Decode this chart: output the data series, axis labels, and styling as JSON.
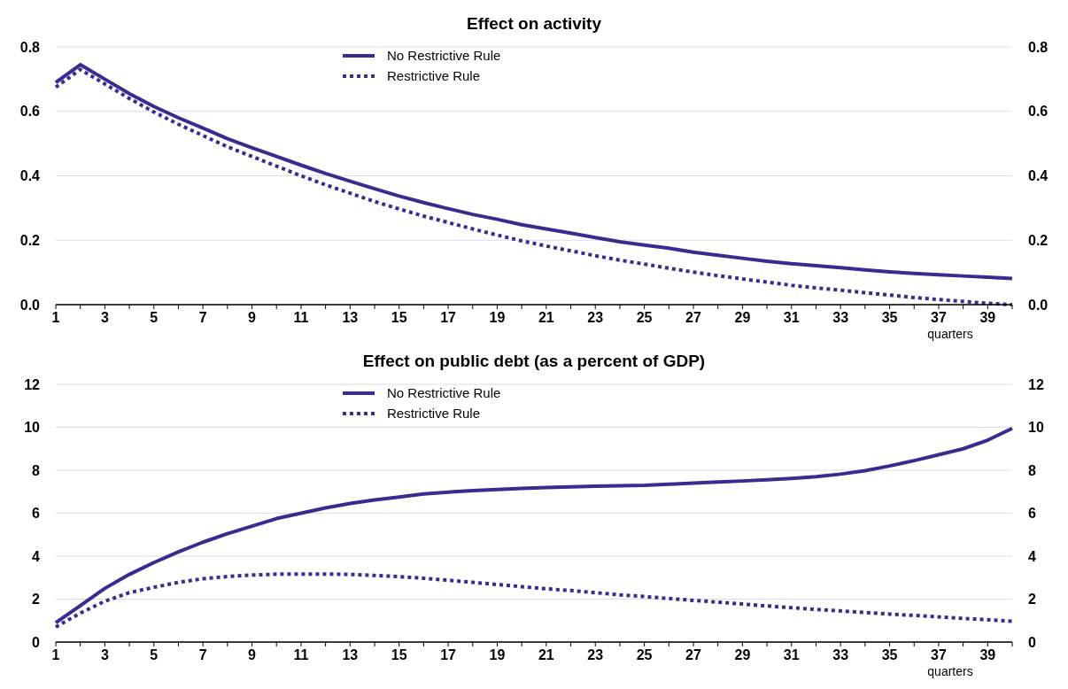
{
  "chart_data": [
    {
      "type": "line",
      "title": "Effect on activity",
      "xlabel": "quarters",
      "x": [
        1,
        2,
        3,
        4,
        5,
        6,
        7,
        8,
        9,
        10,
        11,
        12,
        13,
        14,
        15,
        16,
        17,
        18,
        19,
        20,
        21,
        22,
        23,
        24,
        25,
        26,
        27,
        28,
        29,
        30,
        31,
        32,
        33,
        34,
        35,
        36,
        37,
        38,
        39,
        40
      ],
      "xlim": [
        1,
        40
      ],
      "xticks": [
        1,
        {
          "value": 2,
          "label": null
        },
        3,
        {
          "value": 4,
          "label": null
        },
        5,
        {
          "value": 6,
          "label": null
        },
        7,
        {
          "value": 8,
          "label": null
        },
        9,
        {
          "value": 10,
          "label": null
        },
        11,
        {
          "value": 12,
          "label": null
        },
        13,
        {
          "value": 14,
          "label": null
        },
        15,
        {
          "value": 16,
          "label": null
        },
        17,
        {
          "value": 18,
          "label": null
        },
        19,
        {
          "value": 20,
          "label": null
        },
        21,
        {
          "value": 22,
          "label": null
        },
        23,
        {
          "value": 24,
          "label": null
        },
        25,
        {
          "value": 26,
          "label": null
        },
        27,
        {
          "value": 28,
          "label": null
        },
        29,
        {
          "value": 30,
          "label": null
        },
        31,
        {
          "value": 32,
          "label": null
        },
        33,
        {
          "value": 34,
          "label": null
        },
        35,
        {
          "value": 36,
          "label": null
        },
        37,
        {
          "value": 38,
          "label": null
        },
        39,
        {
          "value": 40,
          "label": null
        }
      ],
      "series": [
        {
          "name": "No Restrictive Rule",
          "color": "#3b2a8f",
          "line_style": "solid",
          "values": [
            0.69,
            0.745,
            0.7,
            0.655,
            0.615,
            0.58,
            0.548,
            0.515,
            0.487,
            0.46,
            0.433,
            0.407,
            0.383,
            0.36,
            0.337,
            0.317,
            0.298,
            0.28,
            0.265,
            0.248,
            0.235,
            0.222,
            0.208,
            0.195,
            0.185,
            0.175,
            0.163,
            0.153,
            0.144,
            0.135,
            0.127,
            0.121,
            0.115,
            0.108,
            0.102,
            0.097,
            0.093,
            0.089,
            0.085,
            0.081
          ]
        },
        {
          "name": "Restrictive Rule",
          "color": "#3b2a8f",
          "line_style": "dotted",
          "values": [
            0.675,
            0.73,
            0.685,
            0.64,
            0.598,
            0.56,
            0.525,
            0.49,
            0.46,
            0.43,
            0.4,
            0.372,
            0.346,
            0.32,
            0.297,
            0.275,
            0.255,
            0.235,
            0.216,
            0.198,
            0.182,
            0.167,
            0.152,
            0.138,
            0.126,
            0.113,
            0.101,
            0.09,
            0.08,
            0.07,
            0.06,
            0.052,
            0.045,
            0.037,
            0.03,
            0.022,
            0.016,
            0.01,
            0.004,
            0.0
          ]
        }
      ],
      "ylim": [
        0,
        0.8
      ],
      "yticks": [
        {
          "value": 0,
          "label": "0.0"
        },
        {
          "value": 0.2,
          "label": "0.2"
        },
        {
          "value": 0.4,
          "label": "0.4"
        },
        {
          "value": 0.6,
          "label": "0.6"
        },
        {
          "value": 0.8,
          "label": "0.8"
        }
      ],
      "y2lim": [
        0,
        0.8
      ],
      "y2ticks": [
        {
          "value": 0,
          "label": "0.0"
        },
        {
          "value": 0.2,
          "label": "0.2"
        },
        {
          "value": 0.4,
          "label": "0.4"
        },
        {
          "value": 0.6,
          "label": "0.6"
        },
        {
          "value": 0.8,
          "label": "0.8"
        }
      ],
      "grid": "y",
      "legend": "top"
    },
    {
      "type": "line",
      "title": "Effect on public debt (as a percent of GDP)",
      "xlabel": "quarters",
      "x": [
        1,
        2,
        3,
        4,
        5,
        6,
        7,
        8,
        9,
        10,
        11,
        12,
        13,
        14,
        15,
        16,
        17,
        18,
        19,
        20,
        21,
        22,
        23,
        24,
        25,
        26,
        27,
        28,
        29,
        30,
        31,
        32,
        33,
        34,
        35,
        36,
        37,
        38,
        39,
        40
      ],
      "xlim": [
        1,
        40
      ],
      "xticks": [
        1,
        {
          "value": 2,
          "label": null
        },
        3,
        {
          "value": 4,
          "label": null
        },
        5,
        {
          "value": 6,
          "label": null
        },
        7,
        {
          "value": 8,
          "label": null
        },
        9,
        {
          "value": 10,
          "label": null
        },
        11,
        {
          "value": 12,
          "label": null
        },
        13,
        {
          "value": 14,
          "label": null
        },
        15,
        {
          "value": 16,
          "label": null
        },
        17,
        {
          "value": 18,
          "label": null
        },
        19,
        {
          "value": 20,
          "label": null
        },
        21,
        {
          "value": 22,
          "label": null
        },
        23,
        {
          "value": 24,
          "label": null
        },
        25,
        {
          "value": 26,
          "label": null
        },
        27,
        {
          "value": 28,
          "label": null
        },
        29,
        {
          "value": 30,
          "label": null
        },
        31,
        {
          "value": 32,
          "label": null
        },
        33,
        {
          "value": 34,
          "label": null
        },
        35,
        {
          "value": 36,
          "label": null
        },
        37,
        {
          "value": 38,
          "label": null
        },
        39,
        {
          "value": 40,
          "label": null
        }
      ],
      "series": [
        {
          "name": "No Restrictive Rule",
          "color": "#3b2a8f",
          "line_style": "solid",
          "values": [
            0.9,
            1.7,
            2.5,
            3.15,
            3.7,
            4.2,
            4.65,
            5.05,
            5.4,
            5.75,
            6.0,
            6.25,
            6.45,
            6.62,
            6.75,
            6.9,
            6.98,
            7.05,
            7.1,
            7.15,
            7.2,
            7.23,
            7.26,
            7.28,
            7.3,
            7.35,
            7.4,
            7.45,
            7.5,
            7.56,
            7.62,
            7.7,
            7.82,
            7.98,
            8.2,
            8.45,
            8.72,
            9.0,
            9.4,
            9.95
          ]
        },
        {
          "name": "Restrictive Rule",
          "color": "#3b2a8f",
          "line_style": "dotted",
          "values": [
            0.7,
            1.35,
            1.9,
            2.3,
            2.55,
            2.78,
            2.95,
            3.05,
            3.12,
            3.16,
            3.17,
            3.17,
            3.15,
            3.1,
            3.05,
            2.97,
            2.88,
            2.78,
            2.68,
            2.58,
            2.48,
            2.4,
            2.3,
            2.2,
            2.12,
            2.03,
            1.94,
            1.86,
            1.77,
            1.68,
            1.6,
            1.52,
            1.45,
            1.38,
            1.3,
            1.24,
            1.17,
            1.1,
            1.04,
            0.97
          ]
        }
      ],
      "ylim": [
        0,
        12
      ],
      "yticks": [
        0,
        2,
        4,
        6,
        8,
        10,
        12
      ],
      "y2lim": [
        0,
        12
      ],
      "y2ticks": [
        0,
        2,
        4,
        6,
        8,
        10,
        12
      ],
      "grid": "y",
      "legend": "top"
    }
  ]
}
